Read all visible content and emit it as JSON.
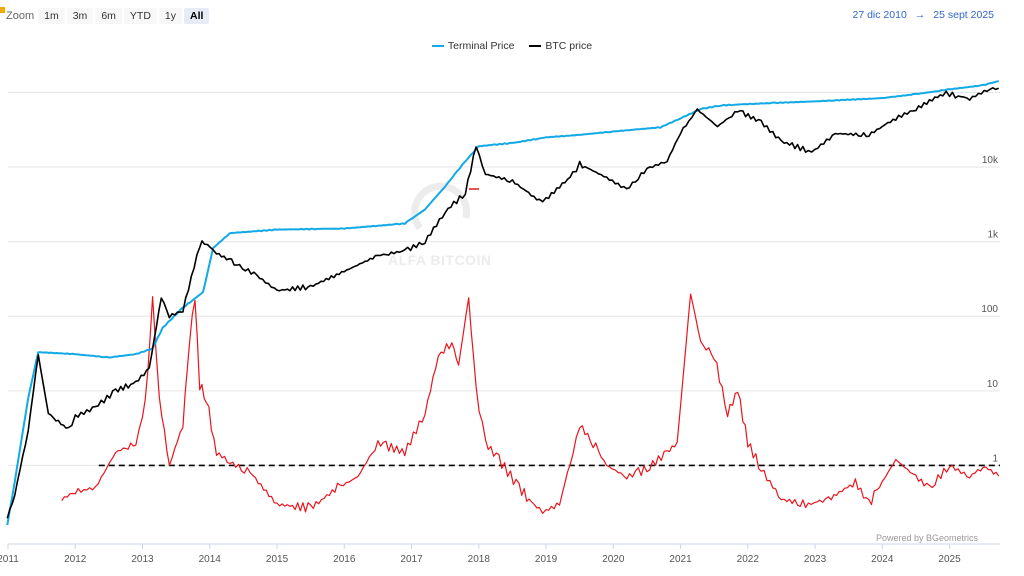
{
  "toolbar": {
    "zoom_label": "Zoom",
    "zoom_options": [
      "1m",
      "3m",
      "6m",
      "YTD",
      "1y",
      "All"
    ],
    "active_zoom": "All"
  },
  "range": {
    "from": "27 dic 2010",
    "arrow": "→",
    "to": "25 sept 2025"
  },
  "credit": "Powered by BGeometrics",
  "watermark": "ALFA BITCOIN",
  "colors": {
    "terminal": "#11a9e6",
    "btc": "#000000",
    "oscillator": "#e8151c",
    "reference": "#000000"
  },
  "chart_data": {
    "type": "line",
    "x_ticks": [
      "2011",
      "2012",
      "2013",
      "2014",
      "2015",
      "2016",
      "2017",
      "2018",
      "2019",
      "2020",
      "2021",
      "2022",
      "2023",
      "2024",
      "2025"
    ],
    "y_ticks": [
      "1",
      "10",
      "100",
      "1k",
      "10k"
    ],
    "y_scale": "log",
    "y_axis_title": "BTC price",
    "ylim": [
      0.1,
      200000
    ],
    "legend_position": "top-center",
    "reference_line": {
      "y": 1,
      "style": "dashed"
    },
    "series": [
      {
        "name": "Terminal Price",
        "x": [
          2010.99,
          2011.1,
          2011.3,
          2011.45,
          2012.0,
          2012.5,
          2012.9,
          2013.15,
          2013.3,
          2013.6,
          2013.9,
          2014.05,
          2014.3,
          2015.0,
          2016.0,
          2016.9,
          2017.2,
          2017.5,
          2017.8,
          2018.0,
          2018.5,
          2019.0,
          2019.5,
          2020.0,
          2020.7,
          2021.0,
          2021.3,
          2021.6,
          2022.0,
          2023.0,
          2024.0,
          2024.5,
          2025.0,
          2025.5,
          2025.73
        ],
        "values": [
          0.16,
          0.6,
          8,
          33,
          31,
          28,
          31,
          37,
          70,
          130,
          210,
          820,
          1300,
          1450,
          1500,
          1750,
          2700,
          5500,
          12000,
          19000,
          21000,
          25000,
          27000,
          30000,
          34000,
          45000,
          60000,
          67000,
          70000,
          76000,
          84000,
          95000,
          110000,
          125000,
          142000
        ]
      },
      {
        "name": "BTC price",
        "x": [
          2010.99,
          2011.1,
          2011.3,
          2011.45,
          2011.6,
          2011.9,
          2012.0,
          2012.3,
          2012.6,
          2012.9,
          2013.1,
          2013.28,
          2013.4,
          2013.6,
          2013.85,
          2013.92,
          2014.1,
          2014.4,
          2014.7,
          2015.0,
          2015.5,
          2016.0,
          2016.5,
          2016.9,
          2017.2,
          2017.5,
          2017.8,
          2017.96,
          2018.1,
          2018.5,
          2018.9,
          2019.0,
          2019.4,
          2019.5,
          2019.9,
          2020.2,
          2020.5,
          2020.8,
          2021.0,
          2021.25,
          2021.55,
          2021.85,
          2022.2,
          2022.5,
          2022.9,
          2023.0,
          2023.3,
          2023.8,
          2024.2,
          2024.5,
          2024.9,
          2025.0,
          2025.3,
          2025.6,
          2025.73
        ]
      },
      {
        "name": "",
        "x": [
          2011.8,
          2012.0,
          2012.3,
          2012.6,
          2012.9,
          2013.0,
          2013.08,
          2013.15,
          2013.25,
          2013.4,
          2013.6,
          2013.7,
          2013.78,
          2013.85,
          2013.95,
          2014.1,
          2014.3,
          2014.6,
          2015.0,
          2015.5,
          2015.9,
          2016.2,
          2016.5,
          2016.9,
          2017.2,
          2017.4,
          2017.6,
          2017.7,
          2017.85,
          2017.96,
          2018.1,
          2018.3,
          2018.6,
          2018.9,
          2019.0,
          2019.2,
          2019.4,
          2019.5,
          2019.7,
          2019.9,
          2020.2,
          2020.5,
          2020.8,
          2020.95,
          2021.05,
          2021.15,
          2021.3,
          2021.5,
          2021.7,
          2021.85,
          2022.0,
          2022.2,
          2022.5,
          2022.9,
          2023.2,
          2023.6,
          2023.8,
          2024.2,
          2024.5,
          2024.7,
          2025.0,
          2025.3,
          2025.5,
          2025.73
        ],
        "values": [
          0.35,
          0.45,
          0.5,
          1.5,
          2,
          4,
          18,
          180,
          8,
          1,
          3.5,
          50,
          180,
          12,
          8,
          1.5,
          1.1,
          0.8,
          0.3,
          0.27,
          0.5,
          0.7,
          2,
          1.5,
          5,
          30,
          45,
          22,
          180,
          10,
          2,
          1.2,
          0.5,
          0.25,
          0.25,
          0.3,
          1.5,
          3.5,
          2,
          1,
          0.7,
          0.9,
          1.5,
          2,
          20,
          200,
          45,
          30,
          5,
          10,
          2,
          0.9,
          0.35,
          0.3,
          0.35,
          0.6,
          0.3,
          1.2,
          0.7,
          0.5,
          1.0,
          0.7,
          1.0,
          0.72
        ]
      }
    ]
  }
}
